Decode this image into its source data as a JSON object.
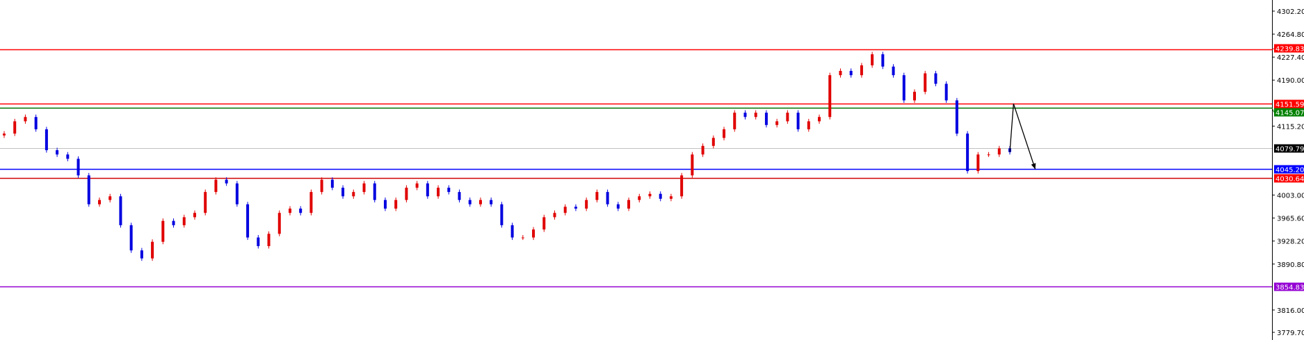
{
  "chart_data": {
    "type": "candlestick",
    "title": "",
    "colors": {
      "bull": "#e00000",
      "bear": "#0000e0",
      "background": "#ffffff",
      "axis": "#000000"
    },
    "y_axis": {
      "position": "right",
      "range": [
        3779.7,
        4302.2
      ],
      "ticks": [
        "4302.20",
        "4264.80",
        "4227.40",
        "4190.00",
        "4115.20",
        "4003.00",
        "3965.60",
        "3928.20",
        "3890.80",
        "3816.00",
        "3779.70"
      ]
    },
    "grid": false,
    "closes": [
      4103,
      4123,
      4130,
      4110,
      4076,
      4069,
      4062,
      4035,
      3988,
      3995,
      4001,
      3954,
      3913,
      3900,
      3927,
      3961,
      3954,
      3967,
      3974,
      4008,
      4028,
      4022,
      3988,
      3934,
      3920,
      3940,
      3974,
      3981,
      3974,
      4008,
      4028,
      4015,
      4001,
      4008,
      4022,
      3995,
      3981,
      3995,
      4015,
      4022,
      4001,
      4015,
      4008,
      3995,
      3988,
      3995,
      3988,
      3954,
      3934,
      3934,
      3947,
      3967,
      3974,
      3984,
      3981,
      3995,
      4008,
      3988,
      3981,
      3995,
      4001,
      4005,
      3997,
      4001,
      4035,
      4069,
      4083,
      4096,
      4110,
      4137,
      4130,
      4137,
      4117,
      4123,
      4137,
      4110,
      4123,
      4130,
      4198,
      4205,
      4198,
      4214,
      4232,
      4212,
      4198,
      4157,
      4171,
      4201,
      4184,
      4157,
      4103,
      4042,
      4069,
      4069,
      4079,
      4073
    ],
    "levels": [
      {
        "price": 4239.83,
        "label": "4239.83",
        "color": "#ff0000",
        "label_bg": "#ff0000",
        "label_fg": "#ffffff"
      },
      {
        "price": 4151.59,
        "label": "4151.59",
        "color": "#ff0000",
        "label_bg": "#ff0000",
        "label_fg": "#ffffff"
      },
      {
        "price": 4145.07,
        "label": "4145.07",
        "color": "#007000",
        "label_bg": "#008000",
        "label_fg": "#ffffff"
      },
      {
        "price": 4079.79,
        "label": "4079.79",
        "color": "#c0c0c0",
        "label_bg": "#000000",
        "label_fg": "#ffffff"
      },
      {
        "price": 4045.2,
        "label": "4045.20",
        "color": "#0000ff",
        "label_bg": "#0000ff",
        "label_fg": "#ffffff"
      },
      {
        "price": 4030.64,
        "label": "4030.64",
        "color": "#d00000",
        "label_bg": "#ff0000",
        "label_fg": "#ffffff"
      },
      {
        "price": 3854.83,
        "label": "3854.83",
        "color": "#9400d3",
        "label_bg": "#9400d3",
        "label_fg": "#ffffff"
      }
    ],
    "projection_arrow": {
      "color": "#000000",
      "points": [
        {
          "bars_ahead": 0,
          "price": 4073
        },
        {
          "bars_ahead": 0.35,
          "price": 4151.59
        },
        {
          "bars_ahead": 2.4,
          "price": 4045.2
        }
      ]
    }
  }
}
